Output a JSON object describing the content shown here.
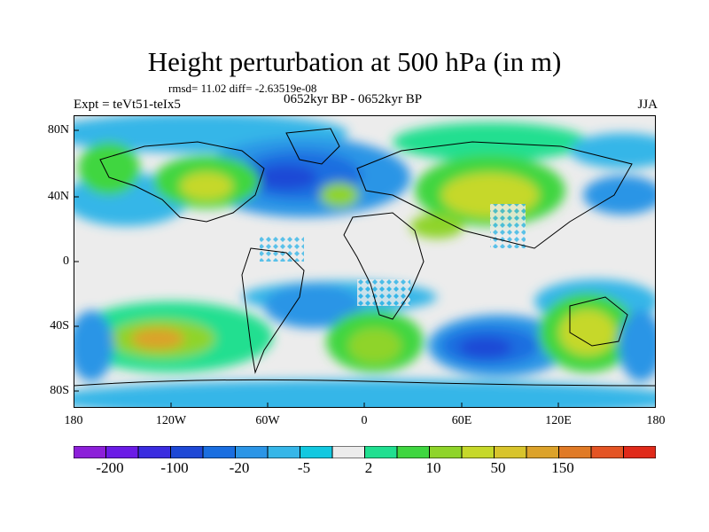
{
  "title": "Height perturbation at 500 hPa (in m)",
  "stats": "rmsd= 11.02 diff= -2.63519e-08",
  "experiment": "Expt = teVt51-teIx5",
  "period": "0652kyr BP - 0652kyr BP",
  "season": "JJA",
  "lat_ticks": [
    "80N",
    "40N",
    "0",
    "40S",
    "80S"
  ],
  "lon_ticks": [
    "180",
    "120W",
    "60W",
    "0",
    "60E",
    "120E",
    "180"
  ],
  "colorbar": {
    "labels": [
      "-200",
      "-100",
      "-20",
      "-5",
      "2",
      "10",
      "50",
      "150"
    ],
    "colors": [
      "#8c1fd9",
      "#6b1be6",
      "#3a2ce0",
      "#1e48d6",
      "#1a6ee0",
      "#2b95e6",
      "#36b6e8",
      "#12c8e0",
      "#ececec",
      "#20df90",
      "#3fd640",
      "#8fd42a",
      "#c6d82a",
      "#d8c42c",
      "#dca22a",
      "#e07a26",
      "#e45424",
      "#e02a1a"
    ]
  },
  "colors": {
    "ocean_neutral": "#ececec",
    "coast": "#000000"
  }
}
